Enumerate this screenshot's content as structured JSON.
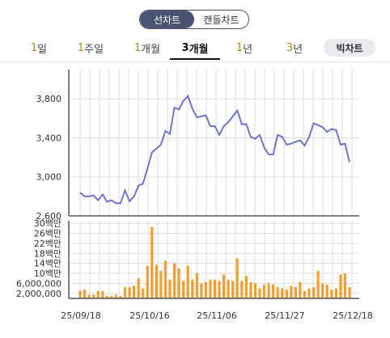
{
  "chart_mode": {
    "line": "선차트",
    "candle": "캔들차트",
    "selected": "line"
  },
  "periods": [
    {
      "num": "1",
      "unit": "일"
    },
    {
      "num": "1",
      "unit": "주일"
    },
    {
      "num": "1",
      "unit": "개월"
    },
    {
      "num": "3",
      "unit": "개월"
    },
    {
      "num": "1",
      "unit": "년"
    },
    {
      "num": "3",
      "unit": "년"
    }
  ],
  "selected_period": 3,
  "big_chart_label": "빅차트",
  "colors": {
    "price_line": "#7074c8",
    "volume_bar": "#f0a030",
    "axis": "#555555",
    "grid": "#dddddd"
  },
  "chart_data": [
    {
      "type": "line",
      "title": "",
      "ylim": [
        2600,
        4100
      ],
      "yticks": [
        2600,
        3000,
        3400,
        3800
      ],
      "ytick_labels": [
        "2,600",
        "3,000",
        "3,400",
        "3,800"
      ],
      "grid": true,
      "values": [
        2840,
        2800,
        2800,
        2810,
        2760,
        2820,
        2745,
        2760,
        2730,
        2730,
        2860,
        2750,
        2800,
        2910,
        2930,
        3090,
        3250,
        3290,
        3330,
        3470,
        3440,
        3710,
        3690,
        3780,
        3830,
        3700,
        3610,
        3620,
        3630,
        3520,
        3520,
        3430,
        3520,
        3560,
        3620,
        3680,
        3540,
        3540,
        3410,
        3390,
        3430,
        3300,
        3230,
        3230,
        3430,
        3410,
        3330,
        3340,
        3360,
        3375,
        3320,
        3410,
        3550,
        3530,
        3510,
        3460,
        3490,
        3480,
        3330,
        3340,
        3150
      ]
    },
    {
      "type": "bar",
      "title": "",
      "ylim": [
        0,
        31000000
      ],
      "yticks": [
        2000000,
        6000000,
        10000000,
        14000000,
        18000000,
        22000000,
        26000000,
        30000000
      ],
      "ytick_labels": [
        "2,000,000",
        "6,000,000",
        "10백만",
        "14백만",
        "18백만",
        "22백만",
        "26백만",
        "30백만"
      ],
      "xtick_labels": [
        "25/09/18",
        "25/10/16",
        "25/11/06",
        "25/11/27",
        "25/12/18"
      ],
      "grid": true,
      "values": [
        3000000,
        3500000,
        1500000,
        1500000,
        3000000,
        3000000,
        1000000,
        1000000,
        1500000,
        1000000,
        4500000,
        4500000,
        5000000,
        8000000,
        4000000,
        13000000,
        28500000,
        13500000,
        11000000,
        15000000,
        7500000,
        14000000,
        12000000,
        7000000,
        13000000,
        7500000,
        10000000,
        6000000,
        6500000,
        7500000,
        7500000,
        7000000,
        9500000,
        7500000,
        7000000,
        16000000,
        7000000,
        9000000,
        6500000,
        6000000,
        4000000,
        5500000,
        6000000,
        5500000,
        4500000,
        4000000,
        3500000,
        5000000,
        4500000,
        6500000,
        3000000,
        4000000,
        4500000,
        11000000,
        6000000,
        5500000,
        3500000,
        4000000,
        9500000,
        10000000,
        4500000
      ]
    }
  ]
}
